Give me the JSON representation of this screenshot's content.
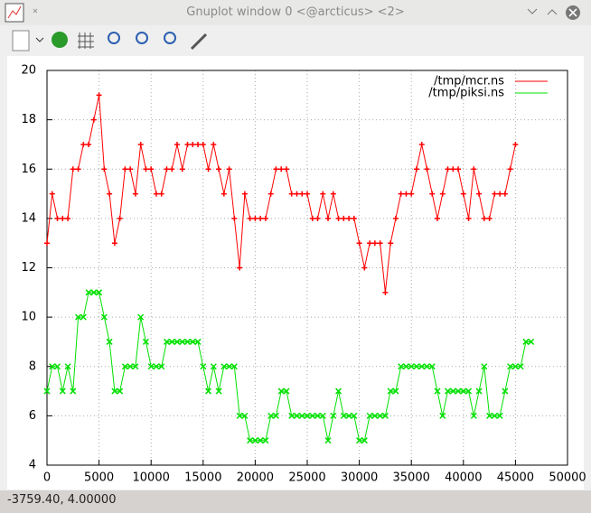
{
  "window": {
    "title": "Gnuplot window 0 <@arcticus> <2>",
    "status": "-3759.40,  4.00000"
  },
  "chart_data": {
    "type": "line",
    "legend": "top right",
    "grid": true,
    "xlim": [
      0,
      50000
    ],
    "xticks": [
      0,
      5000,
      10000,
      15000,
      20000,
      25000,
      30000,
      35000,
      40000,
      45000,
      50000
    ],
    "ylim": [
      4,
      20
    ],
    "yticks": [
      4,
      6,
      8,
      10,
      12,
      14,
      16,
      18,
      20
    ],
    "x": [
      0,
      500,
      1000,
      1500,
      2000,
      2500,
      3000,
      3500,
      4000,
      4500,
      5000,
      5500,
      6000,
      6500,
      7000,
      7500,
      8000,
      8500,
      9000,
      9500,
      10000,
      10500,
      11000,
      11500,
      12000,
      12500,
      13000,
      13500,
      14000,
      14500,
      15000,
      15500,
      16000,
      16500,
      17000,
      17500,
      18000,
      18500,
      19000,
      19500,
      20000,
      20500,
      21000,
      21500,
      22000,
      22500,
      23000,
      23500,
      24000,
      24500,
      25000,
      25500,
      26000,
      26500,
      27000,
      27500,
      28000,
      28500,
      29000,
      29500,
      30000,
      30500,
      31000,
      31500,
      32000,
      32500,
      33000,
      33500,
      34000,
      34500,
      35000,
      35500,
      36000,
      36500,
      37000,
      37500,
      38000,
      38500,
      39000,
      39500,
      40000,
      40500,
      41000,
      41500,
      42000,
      42500,
      43000,
      43500,
      44000,
      44500,
      45000,
      45500,
      46000,
      46500
    ],
    "series": [
      {
        "name": "/tmp/mcr.ns",
        "color": "#ff0000",
        "marker": "+",
        "values": [
          13,
          15,
          14,
          14,
          14,
          16,
          16,
          17,
          17,
          18,
          19,
          16,
          15,
          13,
          14,
          16,
          16,
          15,
          17,
          16,
          16,
          15,
          15,
          16,
          16,
          17,
          16,
          17,
          17,
          17,
          17,
          16,
          17,
          16,
          15,
          16,
          14,
          12,
          15,
          14,
          14,
          14,
          14,
          15,
          16,
          16,
          16,
          15,
          15,
          15,
          15,
          14,
          14,
          15,
          14,
          15,
          14,
          14,
          14,
          14,
          13,
          12,
          13,
          13,
          13,
          11,
          13,
          14,
          15,
          15,
          15,
          16,
          17,
          16,
          15,
          14,
          15,
          16,
          16,
          16,
          15,
          14,
          16,
          15,
          14,
          14,
          15,
          15,
          15,
          16,
          17,
          null,
          null,
          null
        ]
      },
      {
        "name": "/tmp/piksi.ns",
        "color": "#00e000",
        "marker": "x",
        "values": [
          7,
          8,
          8,
          7,
          8,
          7,
          10,
          10,
          11,
          11,
          11,
          10,
          9,
          7,
          7,
          8,
          8,
          8,
          10,
          9,
          8,
          8,
          8,
          9,
          9,
          9,
          9,
          9,
          9,
          9,
          8,
          7,
          8,
          7,
          8,
          8,
          8,
          6,
          6,
          5,
          5,
          5,
          5,
          6,
          6,
          7,
          7,
          6,
          6,
          6,
          6,
          6,
          6,
          6,
          5,
          6,
          7,
          6,
          6,
          6,
          5,
          5,
          6,
          6,
          6,
          6,
          7,
          7,
          8,
          8,
          8,
          8,
          8,
          8,
          8,
          7,
          6,
          7,
          7,
          7,
          7,
          7,
          6,
          7,
          8,
          6,
          6,
          6,
          7,
          8,
          8,
          8,
          9,
          9
        ]
      }
    ]
  }
}
